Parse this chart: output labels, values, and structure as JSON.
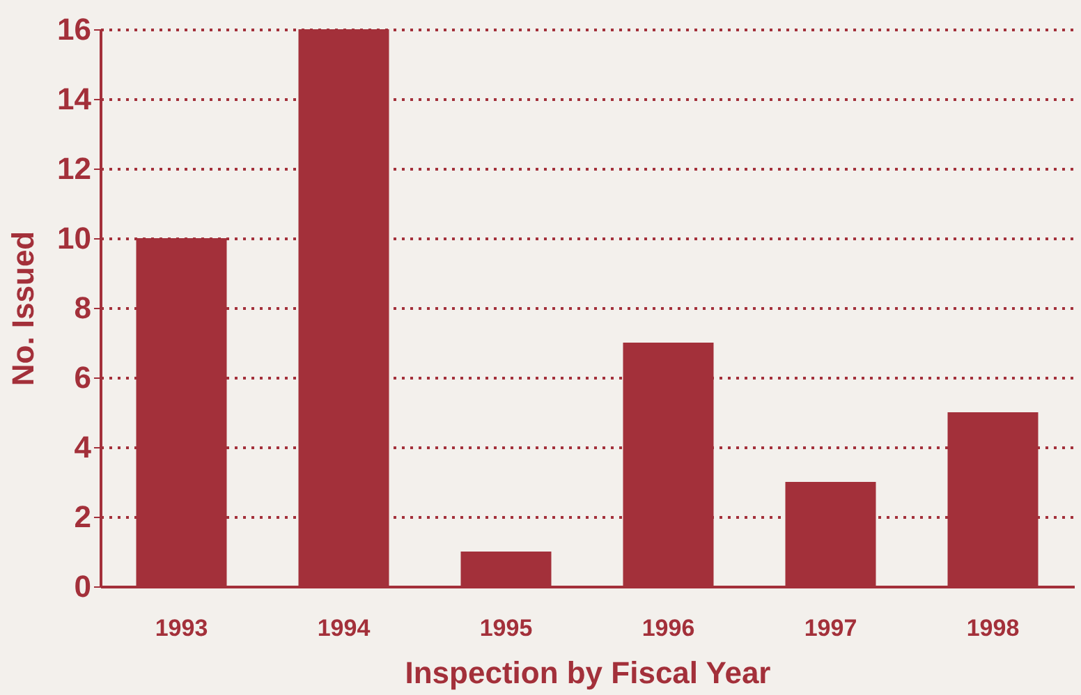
{
  "chart_data": {
    "type": "bar",
    "xlabel": "Inspection by Fiscal Year",
    "ylabel": "No. Issued",
    "categories": [
      "1993",
      "1994",
      "1995",
      "1996",
      "1997",
      "1998"
    ],
    "values": [
      10,
      16,
      1,
      7,
      3,
      5
    ],
    "color": "#a3303a",
    "ylim": [
      0,
      16
    ],
    "yticks": [
      0,
      2,
      4,
      6,
      8,
      10,
      12,
      14,
      16
    ],
    "grid": "y"
  }
}
